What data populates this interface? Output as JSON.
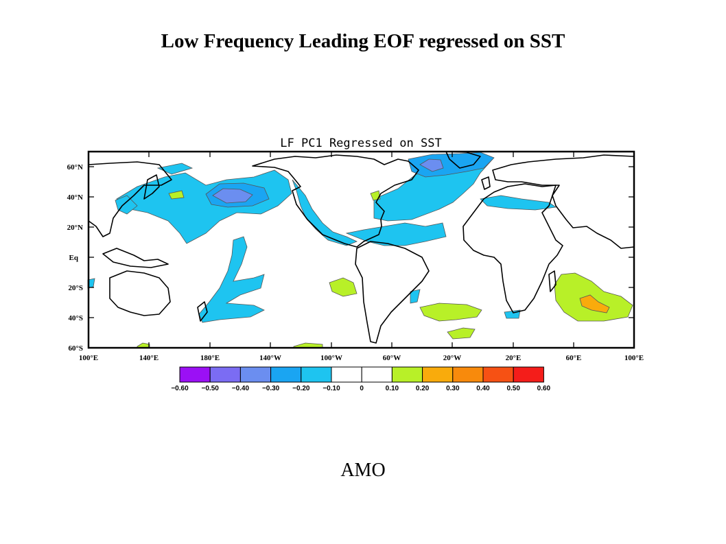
{
  "title": "Low Frequency Leading EOF regressed on SST",
  "panel_title": "LF PC1 Regressed on SST",
  "footer_label": "AMO",
  "lat_labels": [
    "60°N",
    "40°N",
    "20°N",
    "Eq",
    "20°S",
    "40°S",
    "60°S"
  ],
  "lon_labels": [
    "100°E",
    "140°E",
    "180°E",
    "140°W",
    "100°W",
    "60°W",
    "20°W",
    "20°E",
    "60°E",
    "100°E"
  ],
  "colorbar": {
    "levels": [
      "−0.60",
      "−0.50",
      "−0.40",
      "−0.30",
      "−0.20",
      "−0.10",
      "0",
      "0.10",
      "0.20",
      "0.30",
      "0.40",
      "0.50",
      "0.60"
    ],
    "colors": [
      "#9b10f5",
      "#7b6cf3",
      "#6b8ef0",
      "#1aa5f2",
      "#1ec4f0",
      "#ffffff",
      "#ffffff",
      "#b8f028",
      "#f9ab0c",
      "#f88a0c",
      "#f65114",
      "#f41d1a"
    ]
  }
}
